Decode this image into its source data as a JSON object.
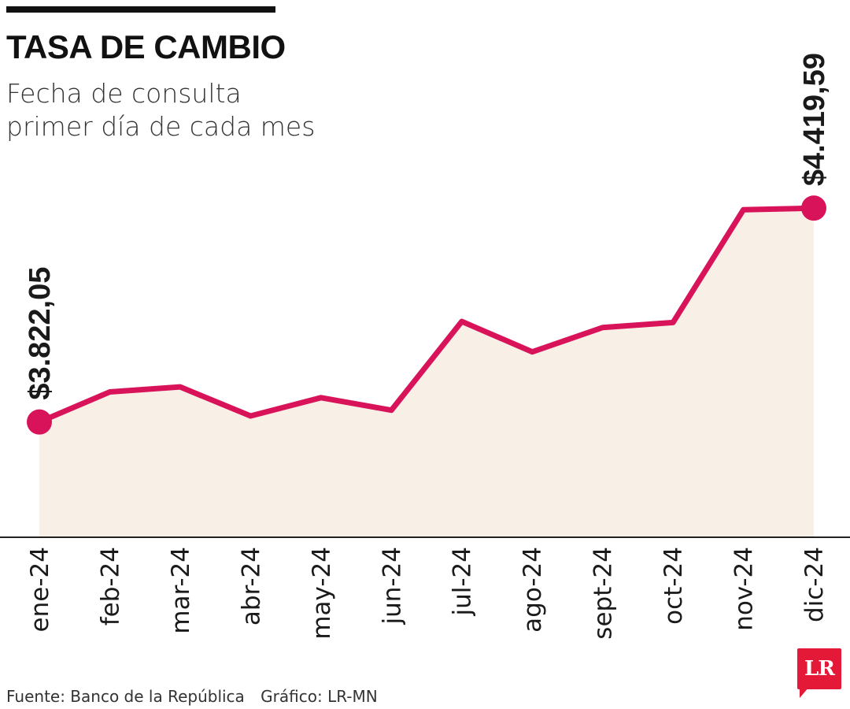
{
  "header": {
    "title": "TASA DE CAMBIO",
    "subtitle_lines": [
      "Fecha de consulta",
      "primer día de cada mes"
    ]
  },
  "footer": {
    "source": "Fuente: Banco de la República",
    "credit": "Gráfico: LR-MN"
  },
  "logo": {
    "text": "LR",
    "color": "#e31937"
  },
  "colors": {
    "line": "#d8135a",
    "area": "#f8efe6",
    "axis": "#222222",
    "text": "#1a1a1a"
  },
  "chart_data": {
    "type": "area",
    "title": "TASA DE CAMBIO",
    "subtitle": "Fecha de consulta primer día de cada mes",
    "xlabel": "",
    "ylabel": "",
    "categories": [
      "ene-24",
      "feb-24",
      "mar-24",
      "abr-24",
      "may-24",
      "jun-24",
      "jul-24",
      "ago-24",
      "sept-24",
      "oct-24",
      "nov-24",
      "dic-24"
    ],
    "values": [
      3822.05,
      3906,
      3920,
      3839,
      3890,
      3855,
      4103,
      4018,
      4086,
      4100,
      4415,
      4419.59
    ],
    "labeled_points": [
      {
        "category": "ene-24",
        "label": "$3.822,05"
      },
      {
        "category": "dic-24",
        "label": "$4.419,59"
      }
    ],
    "ylim": [
      3500,
      4420
    ],
    "y_axis_visible": false,
    "grid": false,
    "legend": "none"
  }
}
